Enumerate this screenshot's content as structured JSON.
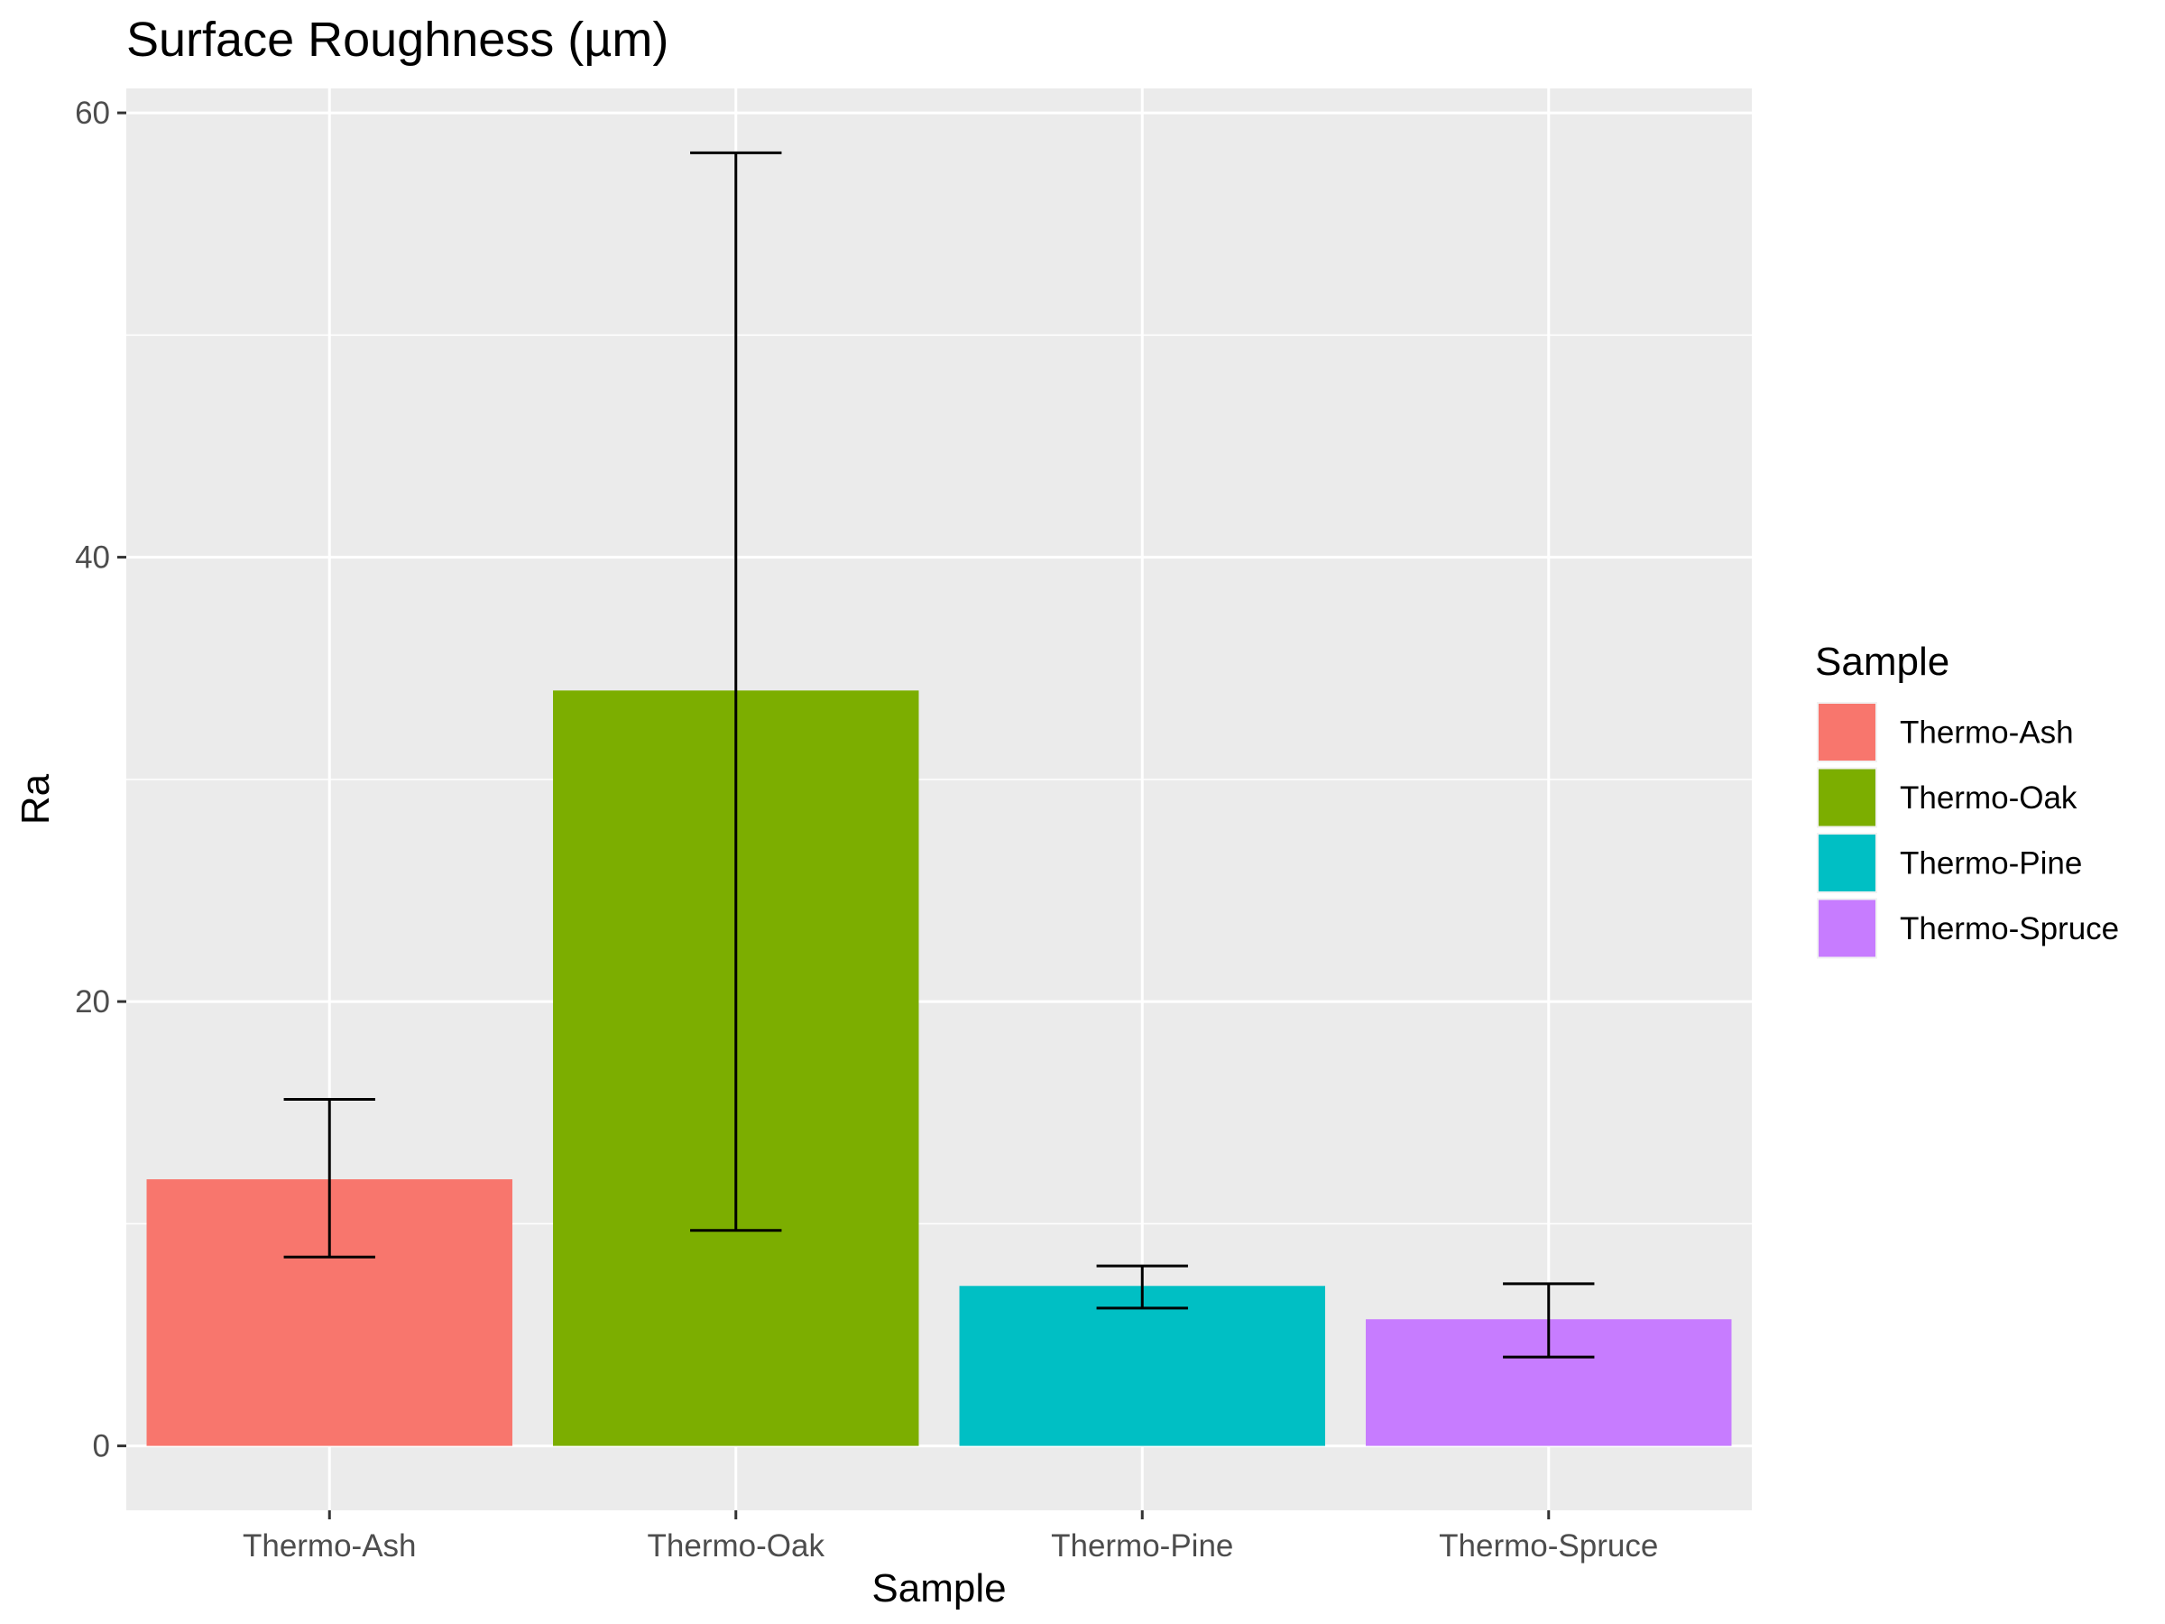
{
  "chart_data": {
    "type": "bar",
    "title": "Surface Roughness (µm)",
    "xlabel": "Sample",
    "ylabel": "Ra",
    "categories": [
      "Thermo-Ash",
      "Thermo-Oak",
      "Thermo-Pine",
      "Thermo-Spruce"
    ],
    "values": [
      12.0,
      34.0,
      7.2,
      5.7
    ],
    "error_low": [
      8.5,
      9.7,
      6.2,
      4.0
    ],
    "error_high": [
      15.6,
      58.2,
      8.1,
      7.3
    ],
    "colors": [
      "#F8766D",
      "#7CAE00",
      "#00BFC4",
      "#C77CFF"
    ],
    "ylim": [
      -2.9,
      61.1
    ],
    "yticks": [
      0,
      20,
      40,
      60
    ],
    "grid": true,
    "panel_background": "#EBEBEB",
    "legend": {
      "title": "Sample",
      "placement": "right",
      "entries": [
        "Thermo-Ash",
        "Thermo-Oak",
        "Thermo-Pine",
        "Thermo-Spruce"
      ]
    }
  }
}
